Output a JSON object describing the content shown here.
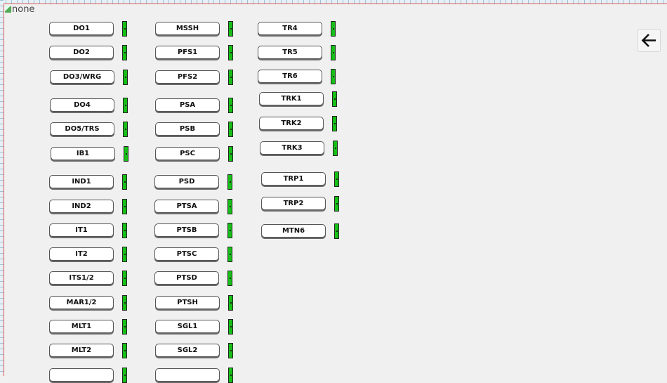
{
  "image_alt": "none",
  "back_button": {
    "icon": "arrow-left-icon"
  },
  "indicator_color": "#16c016",
  "columns": [
    {
      "items": [
        {
          "label": "DO1",
          "status": "on"
        },
        {
          "label": "DO2",
          "status": "on"
        },
        {
          "label": "DO3/WRG",
          "status": "on"
        },
        {
          "label": "DO4",
          "status": "on"
        },
        {
          "label": "DO5/TRS",
          "status": "on"
        },
        {
          "label": "IB1",
          "status": "on"
        },
        {
          "label": "IND1",
          "status": "on"
        },
        {
          "label": "IND2",
          "status": "on"
        },
        {
          "label": "IT1",
          "status": "on"
        },
        {
          "label": "IT2",
          "status": "on"
        },
        {
          "label": "ITS1/2",
          "status": "on"
        },
        {
          "label": "MAR1/2",
          "status": "on"
        },
        {
          "label": "MLT1",
          "status": "on"
        },
        {
          "label": "MLT2",
          "status": "on"
        },
        {
          "label": "",
          "status": "on"
        }
      ]
    },
    {
      "items": [
        {
          "label": "MSSH",
          "status": "on"
        },
        {
          "label": "PFS1",
          "status": "on"
        },
        {
          "label": "PFS2",
          "status": "on"
        },
        {
          "label": "PSA",
          "status": "on"
        },
        {
          "label": "PSB",
          "status": "on"
        },
        {
          "label": "PSC",
          "status": "on"
        },
        {
          "label": "PSD",
          "status": "on"
        },
        {
          "label": "PTSA",
          "status": "on"
        },
        {
          "label": "PTSB",
          "status": "on"
        },
        {
          "label": "PTSC",
          "status": "on"
        },
        {
          "label": "PTSD",
          "status": "on"
        },
        {
          "label": "PTSH",
          "status": "on"
        },
        {
          "label": "SGL1",
          "status": "on"
        },
        {
          "label": "SGL2",
          "status": "on"
        },
        {
          "label": "",
          "status": "on"
        }
      ]
    },
    {
      "items": [
        {
          "label": "TR4",
          "status": "on"
        },
        {
          "label": "TR5",
          "status": "on"
        },
        {
          "label": "TR6",
          "status": "on"
        },
        {
          "label": "TRK1",
          "status": "on"
        },
        {
          "label": "TRK2",
          "status": "on"
        },
        {
          "label": "TRK3",
          "status": "on"
        },
        {
          "label": "TRP1",
          "status": "on"
        },
        {
          "label": "TRP2",
          "status": "on"
        },
        {
          "label": "MTN6",
          "status": "on"
        }
      ]
    }
  ]
}
